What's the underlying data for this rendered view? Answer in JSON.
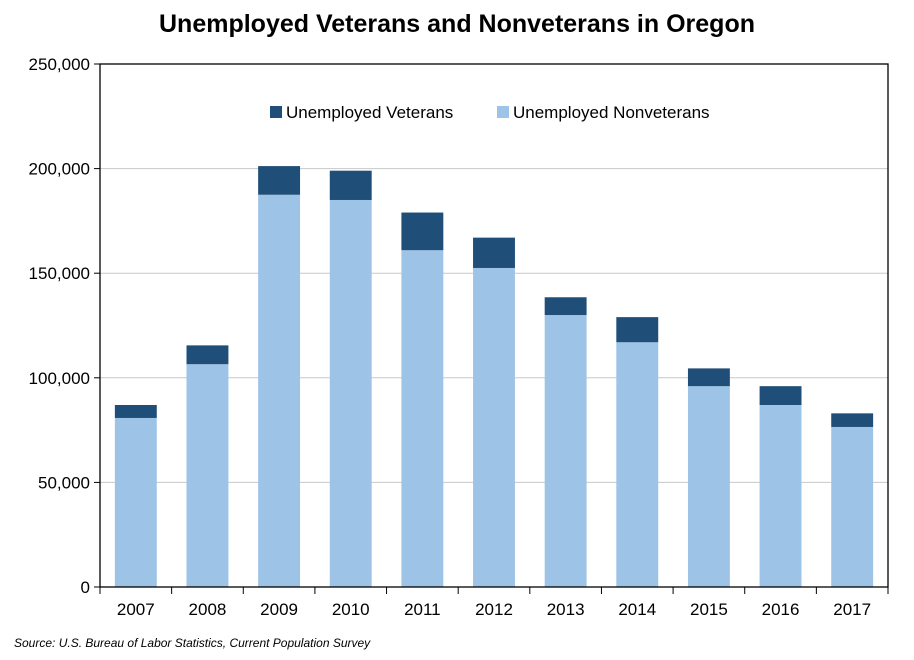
{
  "chart_data": {
    "type": "bar",
    "stacked": true,
    "title": "Unemployed Veterans and Nonveterans in Oregon",
    "source": "Source: U.S. Bureau of Labor Statistics, Current Population Survey",
    "categories": [
      "2007",
      "2008",
      "2009",
      "2010",
      "2011",
      "2012",
      "2013",
      "2014",
      "2015",
      "2016",
      "2017"
    ],
    "series": [
      {
        "name": "Unemployed Nonveterans",
        "color": "#9dc3e6",
        "values": [
          80800,
          106500,
          187500,
          185000,
          161000,
          152500,
          130000,
          117000,
          96000,
          87000,
          76500
        ]
      },
      {
        "name": "Unemployed Veterans",
        "color": "#1f4e79",
        "values": [
          6200,
          9000,
          13700,
          14000,
          18000,
          14500,
          8500,
          12000,
          8500,
          9000,
          6500
        ]
      }
    ],
    "legend_order": [
      "Unemployed Veterans",
      "Unemployed Nonveterans"
    ],
    "legend_position": "top-center",
    "ylim": [
      0,
      250000
    ],
    "yticks": [
      0,
      50000,
      100000,
      150000,
      200000,
      250000
    ],
    "ytick_labels": [
      "0",
      "50,000",
      "100,000",
      "150,000",
      "200,000",
      "250,000"
    ],
    "grid": true
  }
}
